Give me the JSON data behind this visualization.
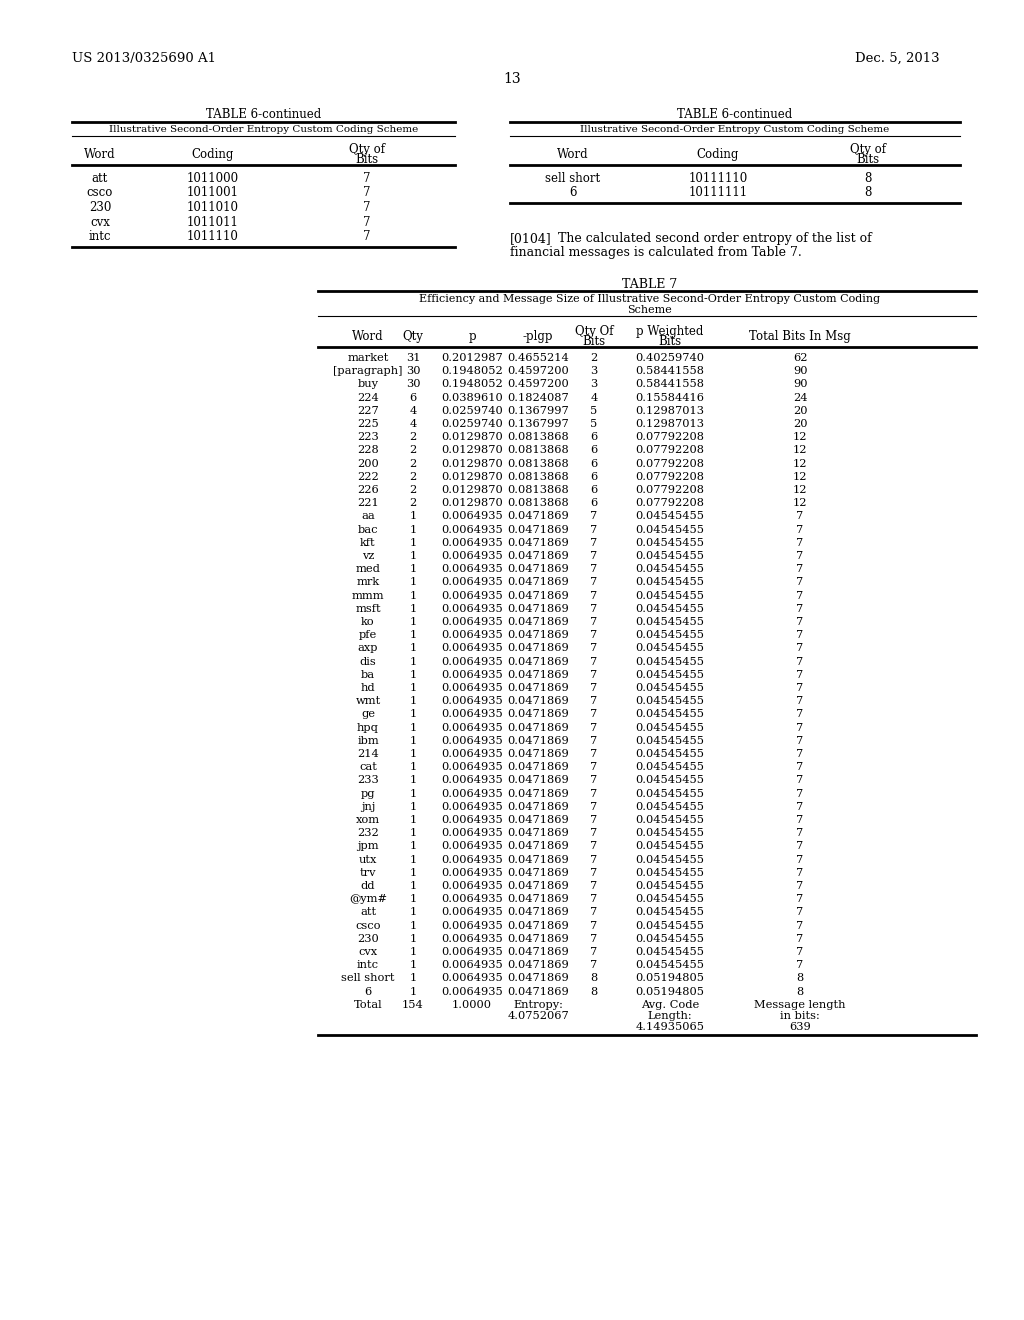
{
  "patent_number": "US 2013/0325690 A1",
  "patent_date": "Dec. 5, 2013",
  "page_number": "13",
  "background_color": "#ffffff",
  "text_color": "#000000",
  "table6_left_title": "TABLE 6-continued",
  "table6_left_subtitle": "Illustrative Second-Order Entropy Custom Coding Scheme",
  "table6_left_rows": [
    [
      "att",
      "1011000",
      "7"
    ],
    [
      "csco",
      "1011001",
      "7"
    ],
    [
      "230",
      "1011010",
      "7"
    ],
    [
      "cvx",
      "1011011",
      "7"
    ],
    [
      "intc",
      "1011110",
      "7"
    ]
  ],
  "table6_right_title": "TABLE 6-continued",
  "table6_right_subtitle": "Illustrative Second-Order Entropy Custom Coding Scheme",
  "table6_right_rows": [
    [
      "sell short",
      "10111110",
      "8"
    ],
    [
      "6",
      "10111111",
      "8"
    ]
  ],
  "para_bold": "[0104]",
  "para_text": "   The calculated second order entropy of the list of\nfinancial messages is calculated from Table 7.",
  "table7_title": "TABLE 7",
  "table7_subtitle_line1": "Efficiency and Message Size of Illustrative Second-Order Entropy Custom Coding",
  "table7_subtitle_line2": "Scheme",
  "table7_rows": [
    [
      "market",
      "31",
      "0.2012987",
      "0.4655214",
      "2",
      "0.40259740",
      "62"
    ],
    [
      "[paragraph]",
      "30",
      "0.1948052",
      "0.4597200",
      "3",
      "0.58441558",
      "90"
    ],
    [
      "buy",
      "30",
      "0.1948052",
      "0.4597200",
      "3",
      "0.58441558",
      "90"
    ],
    [
      "224",
      "6",
      "0.0389610",
      "0.1824087",
      "4",
      "0.15584416",
      "24"
    ],
    [
      "227",
      "4",
      "0.0259740",
      "0.1367997",
      "5",
      "0.12987013",
      "20"
    ],
    [
      "225",
      "4",
      "0.0259740",
      "0.1367997",
      "5",
      "0.12987013",
      "20"
    ],
    [
      "223",
      "2",
      "0.0129870",
      "0.0813868",
      "6",
      "0.07792208",
      "12"
    ],
    [
      "228",
      "2",
      "0.0129870",
      "0.0813868",
      "6",
      "0.07792208",
      "12"
    ],
    [
      "200",
      "2",
      "0.0129870",
      "0.0813868",
      "6",
      "0.07792208",
      "12"
    ],
    [
      "222",
      "2",
      "0.0129870",
      "0.0813868",
      "6",
      "0.07792208",
      "12"
    ],
    [
      "226",
      "2",
      "0.0129870",
      "0.0813868",
      "6",
      "0.07792208",
      "12"
    ],
    [
      "221",
      "2",
      "0.0129870",
      "0.0813868",
      "6",
      "0.07792208",
      "12"
    ],
    [
      "aa",
      "1",
      "0.0064935",
      "0.0471869",
      "7",
      "0.04545455",
      "7"
    ],
    [
      "bac",
      "1",
      "0.0064935",
      "0.0471869",
      "7",
      "0.04545455",
      "7"
    ],
    [
      "kft",
      "1",
      "0.0064935",
      "0.0471869",
      "7",
      "0.04545455",
      "7"
    ],
    [
      "vz",
      "1",
      "0.0064935",
      "0.0471869",
      "7",
      "0.04545455",
      "7"
    ],
    [
      "med",
      "1",
      "0.0064935",
      "0.0471869",
      "7",
      "0.04545455",
      "7"
    ],
    [
      "mrk",
      "1",
      "0.0064935",
      "0.0471869",
      "7",
      "0.04545455",
      "7"
    ],
    [
      "mmm",
      "1",
      "0.0064935",
      "0.0471869",
      "7",
      "0.04545455",
      "7"
    ],
    [
      "msft",
      "1",
      "0.0064935",
      "0.0471869",
      "7",
      "0.04545455",
      "7"
    ],
    [
      "ko",
      "1",
      "0.0064935",
      "0.0471869",
      "7",
      "0.04545455",
      "7"
    ],
    [
      "pfe",
      "1",
      "0.0064935",
      "0.0471869",
      "7",
      "0.04545455",
      "7"
    ],
    [
      "axp",
      "1",
      "0.0064935",
      "0.0471869",
      "7",
      "0.04545455",
      "7"
    ],
    [
      "dis",
      "1",
      "0.0064935",
      "0.0471869",
      "7",
      "0.04545455",
      "7"
    ],
    [
      "ba",
      "1",
      "0.0064935",
      "0.0471869",
      "7",
      "0.04545455",
      "7"
    ],
    [
      "hd",
      "1",
      "0.0064935",
      "0.0471869",
      "7",
      "0.04545455",
      "7"
    ],
    [
      "wmt",
      "1",
      "0.0064935",
      "0.0471869",
      "7",
      "0.04545455",
      "7"
    ],
    [
      "ge",
      "1",
      "0.0064935",
      "0.0471869",
      "7",
      "0.04545455",
      "7"
    ],
    [
      "hpq",
      "1",
      "0.0064935",
      "0.0471869",
      "7",
      "0.04545455",
      "7"
    ],
    [
      "ibm",
      "1",
      "0.0064935",
      "0.0471869",
      "7",
      "0.04545455",
      "7"
    ],
    [
      "214",
      "1",
      "0.0064935",
      "0.0471869",
      "7",
      "0.04545455",
      "7"
    ],
    [
      "cat",
      "1",
      "0.0064935",
      "0.0471869",
      "7",
      "0.04545455",
      "7"
    ],
    [
      "233",
      "1",
      "0.0064935",
      "0.0471869",
      "7",
      "0.04545455",
      "7"
    ],
    [
      "pg",
      "1",
      "0.0064935",
      "0.0471869",
      "7",
      "0.04545455",
      "7"
    ],
    [
      "jnj",
      "1",
      "0.0064935",
      "0.0471869",
      "7",
      "0.04545455",
      "7"
    ],
    [
      "xom",
      "1",
      "0.0064935",
      "0.0471869",
      "7",
      "0.04545455",
      "7"
    ],
    [
      "232",
      "1",
      "0.0064935",
      "0.0471869",
      "7",
      "0.04545455",
      "7"
    ],
    [
      "jpm",
      "1",
      "0.0064935",
      "0.0471869",
      "7",
      "0.04545455",
      "7"
    ],
    [
      "utx",
      "1",
      "0.0064935",
      "0.0471869",
      "7",
      "0.04545455",
      "7"
    ],
    [
      "trv",
      "1",
      "0.0064935",
      "0.0471869",
      "7",
      "0.04545455",
      "7"
    ],
    [
      "dd",
      "1",
      "0.0064935",
      "0.0471869",
      "7",
      "0.04545455",
      "7"
    ],
    [
      "@ym#",
      "1",
      "0.0064935",
      "0.0471869",
      "7",
      "0.04545455",
      "7"
    ],
    [
      "att",
      "1",
      "0.0064935",
      "0.0471869",
      "7",
      "0.04545455",
      "7"
    ],
    [
      "csco",
      "1",
      "0.0064935",
      "0.0471869",
      "7",
      "0.04545455",
      "7"
    ],
    [
      "230",
      "1",
      "0.0064935",
      "0.0471869",
      "7",
      "0.04545455",
      "7"
    ],
    [
      "cvx",
      "1",
      "0.0064935",
      "0.0471869",
      "7",
      "0.04545455",
      "7"
    ],
    [
      "intc",
      "1",
      "0.0064935",
      "0.0471869",
      "7",
      "0.04545455",
      "7"
    ],
    [
      "sell short",
      "1",
      "0.0064935",
      "0.0471869",
      "8",
      "0.05194805",
      "8"
    ],
    [
      "6",
      "1",
      "0.0064935",
      "0.0471869",
      "8",
      "0.05194805",
      "8"
    ]
  ],
  "table7_total": [
    "Total",
    "154",
    "1.0000",
    "Entropy:",
    "4.0752067",
    "",
    "Avg. Code",
    "Length:",
    "4.14935065",
    "Message length",
    "in bits:",
    "639"
  ]
}
